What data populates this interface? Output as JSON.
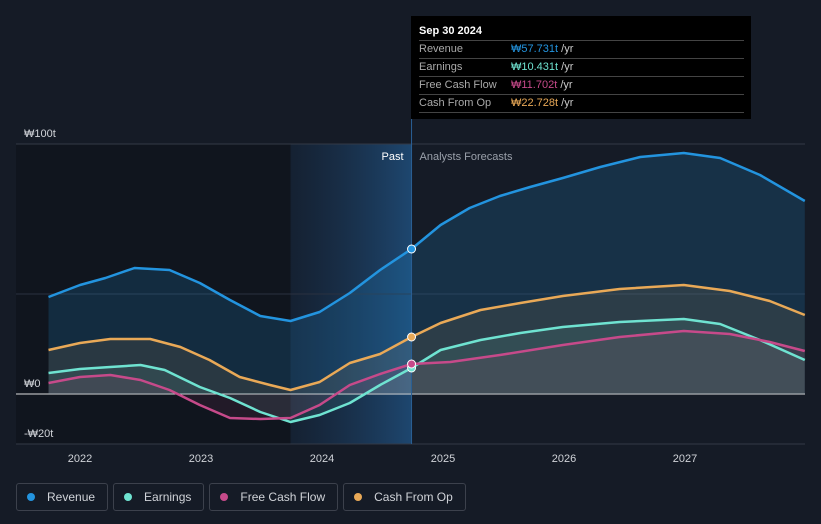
{
  "tooltip": {
    "date": "Sep 30 2024",
    "rows": [
      {
        "label": "Revenue",
        "value": "₩57.731t",
        "unit": "/yr",
        "color": "#2394df"
      },
      {
        "label": "Earnings",
        "value": "₩10.431t",
        "unit": "/yr",
        "color": "#6fe3d1"
      },
      {
        "label": "Free Cash Flow",
        "value": "₩11.702t",
        "unit": "/yr",
        "color": "#c64a8a"
      },
      {
        "label": "Cash From Op",
        "value": "₩22.728t",
        "unit": "/yr",
        "color": "#e9a957"
      }
    ]
  },
  "chart_data": {
    "type": "line",
    "yticks": [
      {
        "v": 100,
        "label": "₩100t"
      },
      {
        "v": 0,
        "label": "₩0"
      },
      {
        "v": -20,
        "label": "-₩20t"
      }
    ],
    "xticks": [
      2022,
      2023,
      2024,
      2025,
      2026,
      2027
    ],
    "ylim": [
      -20,
      100
    ],
    "xlim": [
      2021.55,
      2027.99
    ],
    "past_label": "Past",
    "forecast_label": "Analysts Forecasts",
    "divider_x": 2024.74,
    "past_start": 2023.74,
    "series": [
      {
        "name": "Revenue",
        "color": "#2394df",
        "x": [
          21.74,
          22.0,
          22.21,
          22.45,
          22.74,
          22.99,
          23.24,
          23.49,
          23.74,
          23.98,
          24.23,
          24.48,
          24.74,
          24.98,
          25.22,
          25.47,
          25.72,
          25.99,
          26.3,
          26.63,
          26.99,
          27.29,
          27.62,
          27.99
        ],
        "y": [
          38.8,
          43.6,
          46.4,
          50.4,
          49.6,
          44.4,
          37.6,
          31.2,
          29.2,
          32.8,
          40.4,
          49.6,
          58,
          67.6,
          74.4,
          79.2,
          82.8,
          86.4,
          90.8,
          94.8,
          96.4,
          94.4,
          87.6,
          77.2
        ]
      },
      {
        "name": "Earnings",
        "color": "#6fe3d1",
        "x": [
          21.74,
          22.0,
          22.25,
          22.5,
          22.7,
          22.99,
          23.24,
          23.49,
          23.74,
          23.98,
          24.23,
          24.48,
          24.74,
          24.98,
          25.31,
          25.64,
          25.99,
          26.46,
          26.99,
          27.29,
          27.62,
          27.99
        ],
        "y": [
          8.4,
          10,
          10.8,
          11.6,
          9.6,
          2.8,
          -1.6,
          -7.2,
          -11.2,
          -8.4,
          -3.6,
          3.6,
          10.4,
          17.6,
          21.6,
          24.4,
          26.8,
          28.8,
          30,
          28,
          21.6,
          13.6
        ]
      },
      {
        "name": "Free Cash Flow",
        "color": "#c64a8a",
        "x": [
          21.74,
          22.0,
          22.25,
          22.5,
          22.74,
          22.99,
          23.24,
          23.49,
          23.74,
          23.98,
          24.23,
          24.48,
          24.74,
          25.06,
          25.47,
          25.99,
          26.46,
          26.99,
          27.37,
          27.7,
          27.99
        ],
        "y": [
          4.4,
          6.8,
          7.6,
          5.6,
          1.6,
          -4.4,
          -9.6,
          -10,
          -9.6,
          -4.4,
          3.6,
          8,
          12,
          12.8,
          15.6,
          19.6,
          22.8,
          25.2,
          24,
          20.8,
          17.2
        ]
      },
      {
        "name": "Cash From Op",
        "color": "#e9a957",
        "x": [
          21.74,
          22.0,
          22.25,
          22.58,
          22.83,
          23.07,
          23.32,
          23.57,
          23.74,
          23.98,
          24.23,
          24.48,
          24.74,
          24.98,
          25.31,
          25.64,
          25.99,
          26.46,
          26.99,
          27.37,
          27.7,
          27.99
        ],
        "y": [
          17.6,
          20.4,
          22,
          22,
          18.8,
          13.6,
          6.8,
          3.6,
          1.6,
          4.8,
          12.4,
          16,
          22.8,
          28.4,
          33.6,
          36.4,
          39.2,
          42,
          43.6,
          41.2,
          37.2,
          31.6
        ]
      }
    ]
  },
  "legend": [
    "Revenue",
    "Earnings",
    "Free Cash Flow",
    "Cash From Op"
  ]
}
